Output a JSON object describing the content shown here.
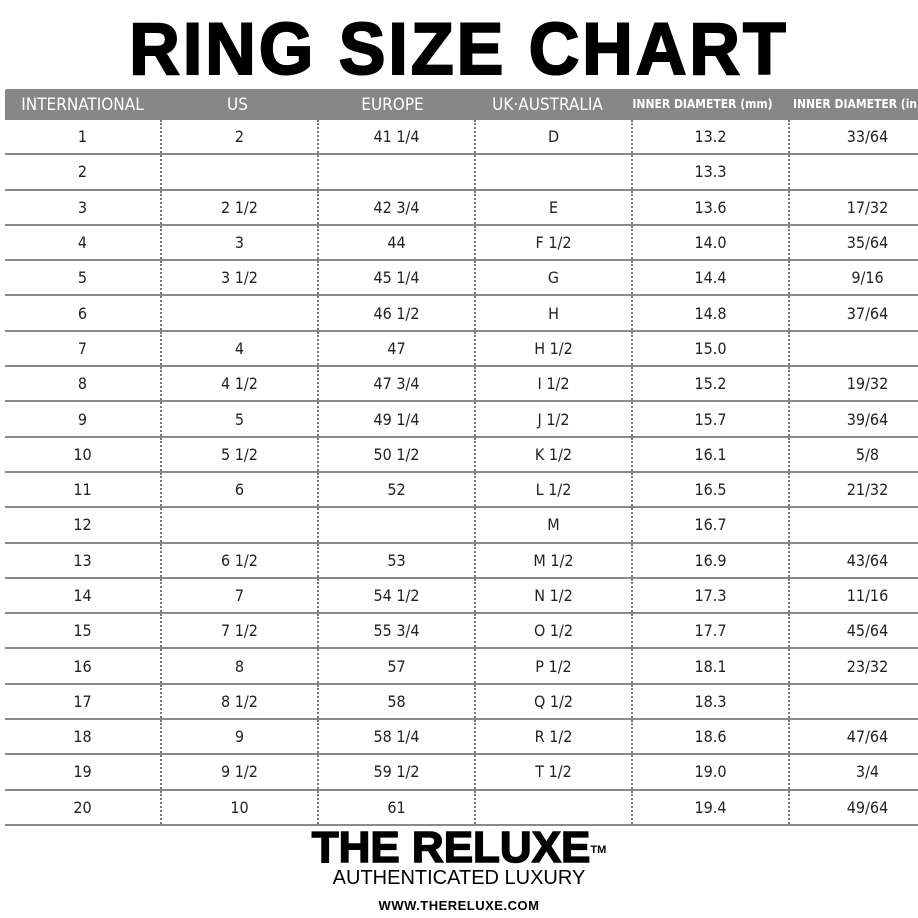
{
  "title": "RING SIZE CHART",
  "columns": [
    "INTERNATIONAL",
    "US",
    "EUROPE",
    "UK·AUSTRALIA",
    "INNER DIAMETER (mm)",
    "INNER DIAMETER (in)"
  ],
  "rows": [
    [
      "1",
      "2",
      "41 1/4",
      "D",
      "13.2",
      "33/64"
    ],
    [
      "2",
      "",
      "",
      "",
      "13.3",
      ""
    ],
    [
      "3",
      "2 1/2",
      "42 3/4",
      "E",
      "13.6",
      "17/32"
    ],
    [
      "4",
      "3",
      "44",
      "F 1/2",
      "14.0",
      "35/64"
    ],
    [
      "5",
      "3 1/2",
      "45 1/4",
      "G",
      "14.4",
      "9/16"
    ],
    [
      "6",
      "",
      "46 1/2",
      "H",
      "14.8",
      "37/64"
    ],
    [
      "7",
      "4",
      "47",
      "H 1/2",
      "15.0",
      ""
    ],
    [
      "8",
      "4 1/2",
      "47 3/4",
      "I 1/2",
      "15.2",
      "19/32"
    ],
    [
      "9",
      "5",
      "49 1/4",
      "J 1/2",
      "15.7",
      "39/64"
    ],
    [
      "10",
      "5 1/2",
      "50 1/2",
      "K 1/2",
      "16.1",
      "5/8"
    ],
    [
      "11",
      "6",
      "52",
      "L 1/2",
      "16.5",
      "21/32"
    ],
    [
      "12",
      "",
      "",
      "M",
      "16.7",
      ""
    ],
    [
      "13",
      "6 1/2",
      "53",
      "M 1/2",
      "16.9",
      "43/64"
    ],
    [
      "14",
      "7",
      "54 1/2",
      "N 1/2",
      "17.3",
      "11/16"
    ],
    [
      "15",
      "7 1/2",
      "55 3/4",
      "O 1/2",
      "17.7",
      "45/64"
    ],
    [
      "16",
      "8",
      "57",
      "P 1/2",
      "18.1",
      "23/32"
    ],
    [
      "17",
      "8 1/2",
      "58",
      "Q 1/2",
      "18.3",
      ""
    ],
    [
      "18",
      "9",
      "58 1/4",
      "R 1/2",
      "18.6",
      "47/64"
    ],
    [
      "19",
      "9 1/2",
      "59 1/2",
      "T 1/2",
      "19.0",
      "3/4"
    ],
    [
      "20",
      "10",
      "61",
      "",
      "19.4",
      "49/64"
    ]
  ],
  "footer": {
    "brand": "THE RELUXE",
    "trademark": "TM",
    "tagline": "AUTHENTICATED LUXURY",
    "url": "WWW.THERELUXE.COM"
  },
  "colors": {
    "header_bg": "#878787",
    "header_text": "#ffffff",
    "row_line": "#8a8a8a"
  }
}
